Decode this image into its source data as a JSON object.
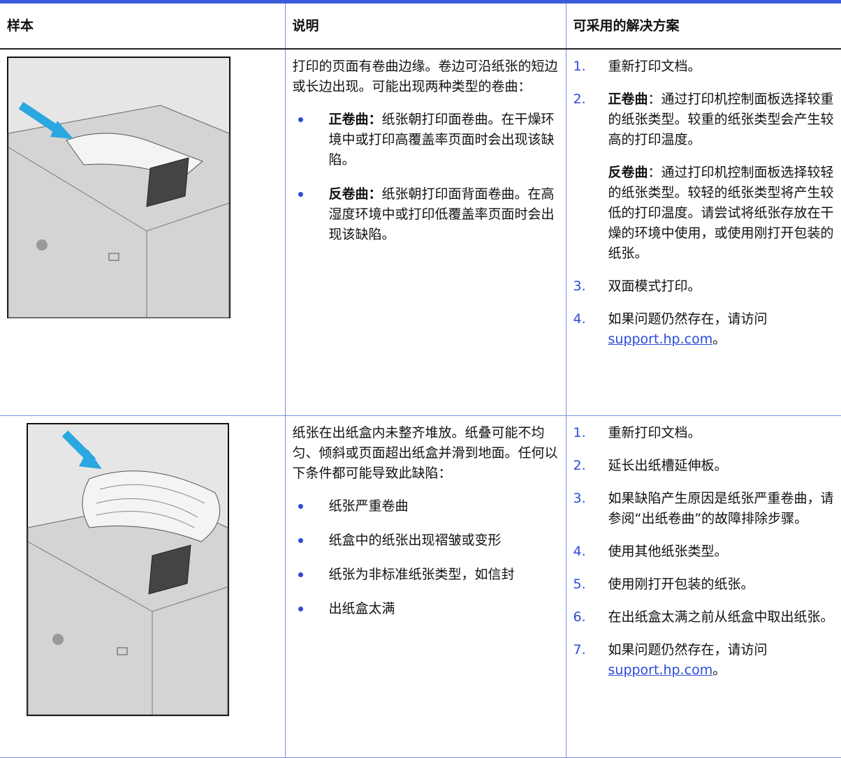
{
  "header": [
    "样本",
    "说明",
    "可采用的解决方案"
  ],
  "rows": [
    {
      "description": {
        "intro": "打印的页面有卷曲边缘。卷边可沿纸张的短边或长边出现。可能出现两种类型的卷曲：",
        "bullets": [
          {
            "bold": "正卷曲：",
            "text": "纸张朝打印面卷曲。在干燥环境中或打印高覆盖率页面时会出现该缺陷。"
          },
          {
            "bold": "反卷曲：",
            "text": "纸张朝打印面背面卷曲。在高湿度环境中或打印低覆盖率页面时会出现该缺陷。"
          }
        ]
      },
      "solutions": [
        {
          "number": "1.",
          "paragraphs": [
            {
              "text": "重新打印文档。"
            }
          ]
        },
        {
          "number": "2.",
          "paragraphs": [
            {
              "bold": "正卷曲",
              "text": "：通过打印机控制面板选择较重的纸张类型。较重的纸张类型会产生较高的打印温度。"
            },
            {
              "bold": "反卷曲",
              "text": "：通过打印机控制面板选择较轻的纸张类型。较轻的纸张类型将产生较低的打印温度。请尝试将纸张存放在干燥的环境中使用，或使用刚打开包装的纸张。"
            }
          ]
        },
        {
          "number": "3.",
          "paragraphs": [
            {
              "text": "双面模式打印。"
            }
          ]
        },
        {
          "number": "4.",
          "paragraphs": [
            {
              "text": "如果问题仍然存在，请访问",
              "link": "support.hp.com",
              "after": "。"
            }
          ]
        }
      ]
    },
    {
      "description": {
        "intro": "纸张在出纸盒内未整齐堆放。纸叠可能不均匀、倾斜或页面超出纸盒并滑到地面。任何以下条件都可能导致此缺陷：",
        "bullets": [
          {
            "text": "纸张严重卷曲"
          },
          {
            "text": "纸盒中的纸张出现褶皱或变形"
          },
          {
            "text": "纸张为非标准纸张类型，如信封"
          },
          {
            "text": "出纸盒太满"
          }
        ]
      },
      "solutions": [
        {
          "number": "1.",
          "paragraphs": [
            {
              "text": "重新打印文档。"
            }
          ]
        },
        {
          "number": "2.",
          "paragraphs": [
            {
              "text": "延长出纸槽延伸板。"
            }
          ]
        },
        {
          "number": "3.",
          "paragraphs": [
            {
              "text": "如果缺陷产生原因是纸张严重卷曲，请参阅“出纸卷曲”的故障排除步骤。"
            }
          ]
        },
        {
          "number": "4.",
          "paragraphs": [
            {
              "text": "使用其他纸张类型。"
            }
          ]
        },
        {
          "number": "5.",
          "paragraphs": [
            {
              "text": "使用刚打开包装的纸张。"
            }
          ]
        },
        {
          "number": "6.",
          "paragraphs": [
            {
              "text": "在出纸盒太满之前从纸盒中取出纸张。"
            }
          ]
        },
        {
          "number": "7.",
          "paragraphs": [
            {
              "text": "如果问题仍然存在，请访问",
              "link": "support.hp.com",
              "after": "。"
            }
          ]
        }
      ]
    }
  ]
}
